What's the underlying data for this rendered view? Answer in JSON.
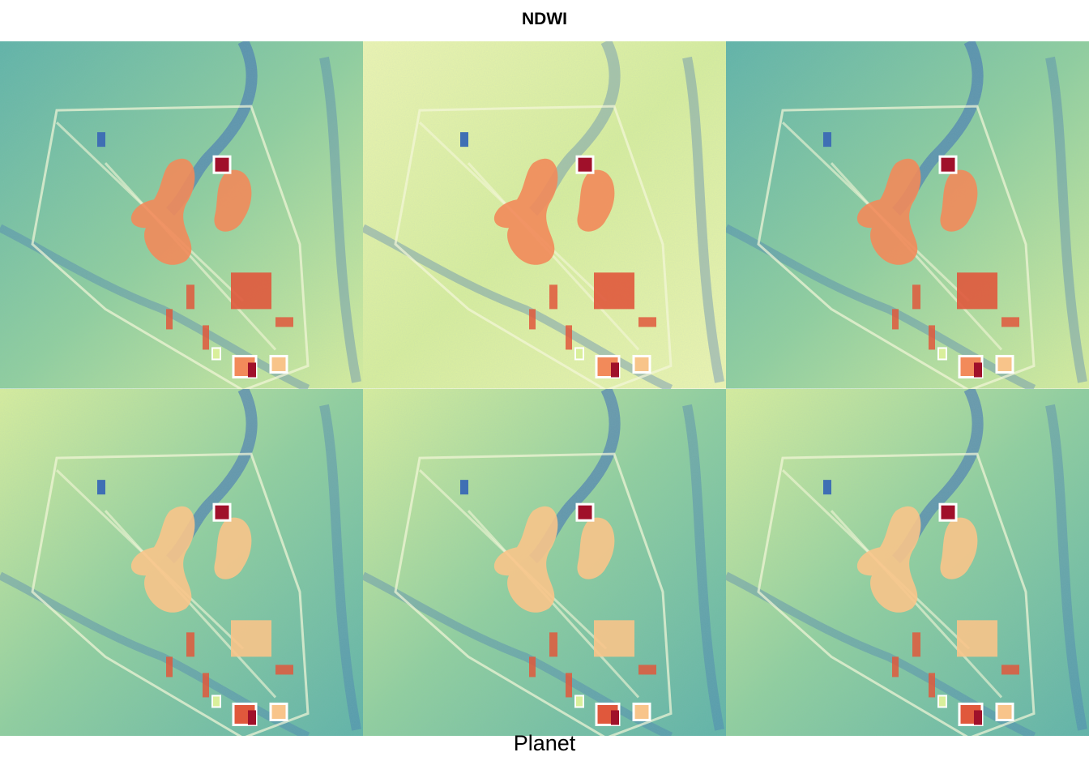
{
  "title": "NDWI",
  "caption": "Planet",
  "palette": {
    "water_blue": "#3f6fb4",
    "teal": "#5fb3a6",
    "green": "#8fcf9c",
    "yellow_green": "#d9ef9b",
    "pale_yellow": "#eef6b0",
    "light_orange": "#f8c48a",
    "orange": "#f28a5a",
    "red_orange": "#e0583c",
    "dark_red": "#a0102a",
    "white": "#ffffff"
  },
  "panels": [
    {
      "id": "panel-1",
      "background_tone": "teal"
    },
    {
      "id": "panel-2",
      "background_tone": "pale_yellow"
    },
    {
      "id": "panel-3",
      "background_tone": "teal"
    },
    {
      "id": "panel-4",
      "background_tone": "yellow_green"
    },
    {
      "id": "panel-5",
      "background_tone": "yellow_green"
    },
    {
      "id": "panel-6",
      "background_tone": "yellow_green"
    }
  ]
}
